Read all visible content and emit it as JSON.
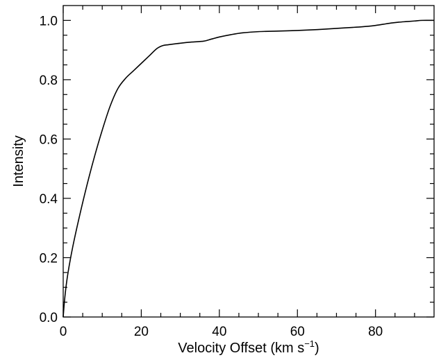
{
  "chart_data": {
    "type": "line",
    "xlabel_main": "Velocity Offset (km s",
    "xlabel_sup": "−1",
    "xlabel_end": ")",
    "ylabel": "Intensity",
    "xlim": [
      0,
      95
    ],
    "ylim": [
      0,
      1.05
    ],
    "x_major_ticks": [
      0,
      20,
      40,
      60,
      80
    ],
    "x_tick_labels": [
      "0",
      "20",
      "40",
      "60",
      "80"
    ],
    "y_major_ticks": [
      0.0,
      0.2,
      0.4,
      0.6,
      0.8,
      1.0
    ],
    "y_tick_labels": [
      "0.0",
      "0.2",
      "0.4",
      "0.6",
      "0.8",
      "1.0"
    ],
    "grid": false,
    "series": [
      {
        "color": "#000000",
        "x": [
          0,
          0.3,
          0.8,
          1.5,
          2.5,
          4,
          6,
          8,
          10,
          12,
          14,
          16,
          18,
          20,
          22,
          24,
          25.5,
          27,
          30,
          33,
          36,
          38,
          40,
          43,
          46,
          50,
          55,
          60,
          65,
          70,
          75,
          78,
          80,
          82,
          84,
          86,
          88,
          90,
          92,
          95
        ],
        "y": [
          0.0,
          0.05,
          0.11,
          0.17,
          0.24,
          0.33,
          0.44,
          0.54,
          0.63,
          0.71,
          0.77,
          0.805,
          0.83,
          0.855,
          0.88,
          0.905,
          0.915,
          0.918,
          0.923,
          0.927,
          0.93,
          0.937,
          0.944,
          0.952,
          0.958,
          0.962,
          0.964,
          0.966,
          0.969,
          0.973,
          0.977,
          0.98,
          0.983,
          0.987,
          0.991,
          0.994,
          0.996,
          0.998,
          1.0,
          1.0
        ]
      }
    ]
  }
}
